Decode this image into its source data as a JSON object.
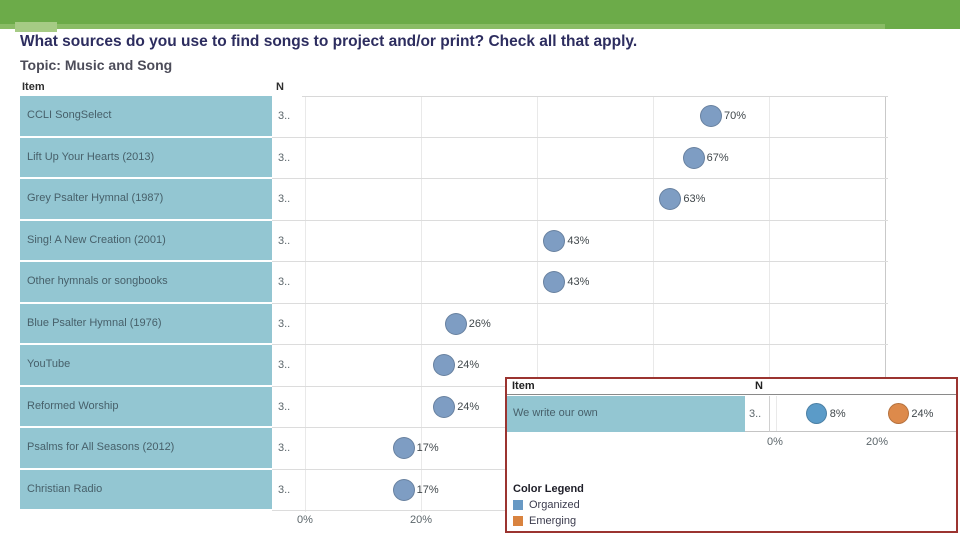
{
  "slide": {
    "title": "What sources do you use to find songs to project and/or print? Check all that apply.",
    "topic": "Topic: Music and Song",
    "theme": {
      "banner_green": "#6cab49",
      "banner_green_light": "#8abc66",
      "banner_green_notch": "#a6cb85",
      "title_color": "#2d2d5f",
      "callout_border_red": "#9b3430",
      "item_cell_blue": "#93c6d2"
    }
  },
  "chart_data": [
    {
      "type": "scatter",
      "item_header": "Item",
      "n_header": "N",
      "color": "#7e9dc3",
      "x_axis": {
        "range": [
          0,
          100
        ],
        "tick_interval_pct": 20,
        "grid": true,
        "visible_tick_labels": [
          "0%",
          "20%"
        ]
      },
      "rows": [
        {
          "item": "CCLI SongSelect",
          "n": "3..",
          "value": 70,
          "label": "70%"
        },
        {
          "item": "Lift Up Your Hearts (2013)",
          "n": "3..",
          "value": 67,
          "label": "67%"
        },
        {
          "item": "Grey Psalter Hymnal (1987)",
          "n": "3..",
          "value": 63,
          "label": "63%"
        },
        {
          "item": "Sing! A New Creation (2001)",
          "n": "3..",
          "value": 43,
          "label": "43%"
        },
        {
          "item": "Other hymnals or songbooks",
          "n": "3..",
          "value": 43,
          "label": "43%"
        },
        {
          "item": "Blue Psalter Hymnal (1976)",
          "n": "3..",
          "value": 26,
          "label": "26%"
        },
        {
          "item": "YouTube",
          "n": "3..",
          "value": 24,
          "label": "24%"
        },
        {
          "item": "Reformed Worship",
          "n": "3..",
          "value": 24,
          "label": "24%"
        },
        {
          "item": "Psalms for All Seasons (2012)",
          "n": "3..",
          "value": 17,
          "label": "17%"
        },
        {
          "item": "Christian Radio",
          "n": "3..",
          "value": 17,
          "label": "17%"
        }
      ]
    },
    {
      "type": "scatter",
      "item_header": "Item",
      "n_header": "N",
      "x_axis": {
        "range": [
          0,
          35
        ],
        "grid": true,
        "visible_tick_labels": [
          "0%",
          "20%"
        ]
      },
      "rows": [
        {
          "item": "We write our own",
          "n": "3..",
          "series": [
            {
              "name": "Organized",
              "value": 8,
              "label": "8%",
              "color": "#5b9bc8"
            },
            {
              "name": "Emerging",
              "value": 24,
              "label": "24%",
              "color": "#dd8a4b"
            }
          ]
        }
      ],
      "legend": {
        "title": "Color Legend",
        "entries": [
          {
            "label": "Organized",
            "color": "#6899c4"
          },
          {
            "label": "Emerging",
            "color": "#d9833f"
          }
        ]
      }
    }
  ]
}
